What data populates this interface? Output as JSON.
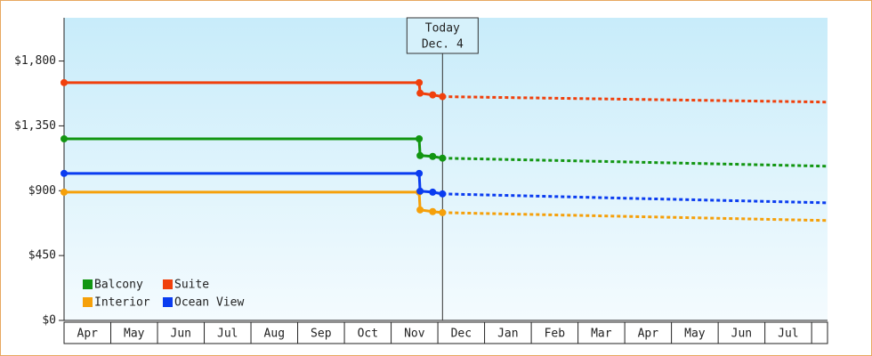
{
  "chart_data": {
    "type": "line",
    "ylim": [
      0,
      2100
    ],
    "yticks": [
      {
        "value": 0,
        "label": "$0"
      },
      {
        "value": 450,
        "label": "$450"
      },
      {
        "value": 900,
        "label": "$900"
      },
      {
        "value": 1350,
        "label": "$1,350"
      },
      {
        "value": 1800,
        "label": "$1,800"
      }
    ],
    "xlim": [
      0,
      16.34
    ],
    "xticks": [
      {
        "value": 0.5,
        "label": "Apr"
      },
      {
        "value": 1.5,
        "label": "May"
      },
      {
        "value": 2.5,
        "label": "Jun"
      },
      {
        "value": 3.5,
        "label": "Jul"
      },
      {
        "value": 4.5,
        "label": "Aug"
      },
      {
        "value": 5.5,
        "label": "Sep"
      },
      {
        "value": 6.5,
        "label": "Oct"
      },
      {
        "value": 7.5,
        "label": "Nov"
      },
      {
        "value": 8.5,
        "label": "Dec"
      },
      {
        "value": 9.5,
        "label": "Jan"
      },
      {
        "value": 10.5,
        "label": "Feb"
      },
      {
        "value": 11.5,
        "label": "Mar"
      },
      {
        "value": 12.5,
        "label": "Apr"
      },
      {
        "value": 13.5,
        "label": "May"
      },
      {
        "value": 14.5,
        "label": "Jun"
      },
      {
        "value": 15.5,
        "label": "Jul"
      }
    ],
    "x": [
      0,
      7.6,
      7.62,
      7.89,
      8.1
    ],
    "forecast_x": [
      8.1,
      12,
      16.34
    ],
    "annotation": {
      "x": 8.1,
      "text": [
        "Today",
        "Dec. 4"
      ]
    },
    "legend": "lower left",
    "series": [
      {
        "name": "Balcony",
        "color": "#129612",
        "values": [
          1260,
          1260,
          1144,
          1138,
          1126
        ],
        "forecast": [
          1126,
          1100,
          1070
        ]
      },
      {
        "name": "Suite",
        "color": "#f0400c",
        "values": [
          1650,
          1650,
          1577,
          1565,
          1553
        ],
        "forecast": [
          1553,
          1535,
          1515
        ]
      },
      {
        "name": "Interior",
        "color": "#f5a00a",
        "values": [
          890,
          890,
          767,
          755,
          748
        ],
        "forecast": [
          748,
          722,
          693
        ]
      },
      {
        "name": "Ocean View",
        "color": "#0a3cf0",
        "values": [
          1020,
          1020,
          897,
          890,
          878
        ],
        "forecast": [
          878,
          848,
          816
        ]
      }
    ]
  }
}
